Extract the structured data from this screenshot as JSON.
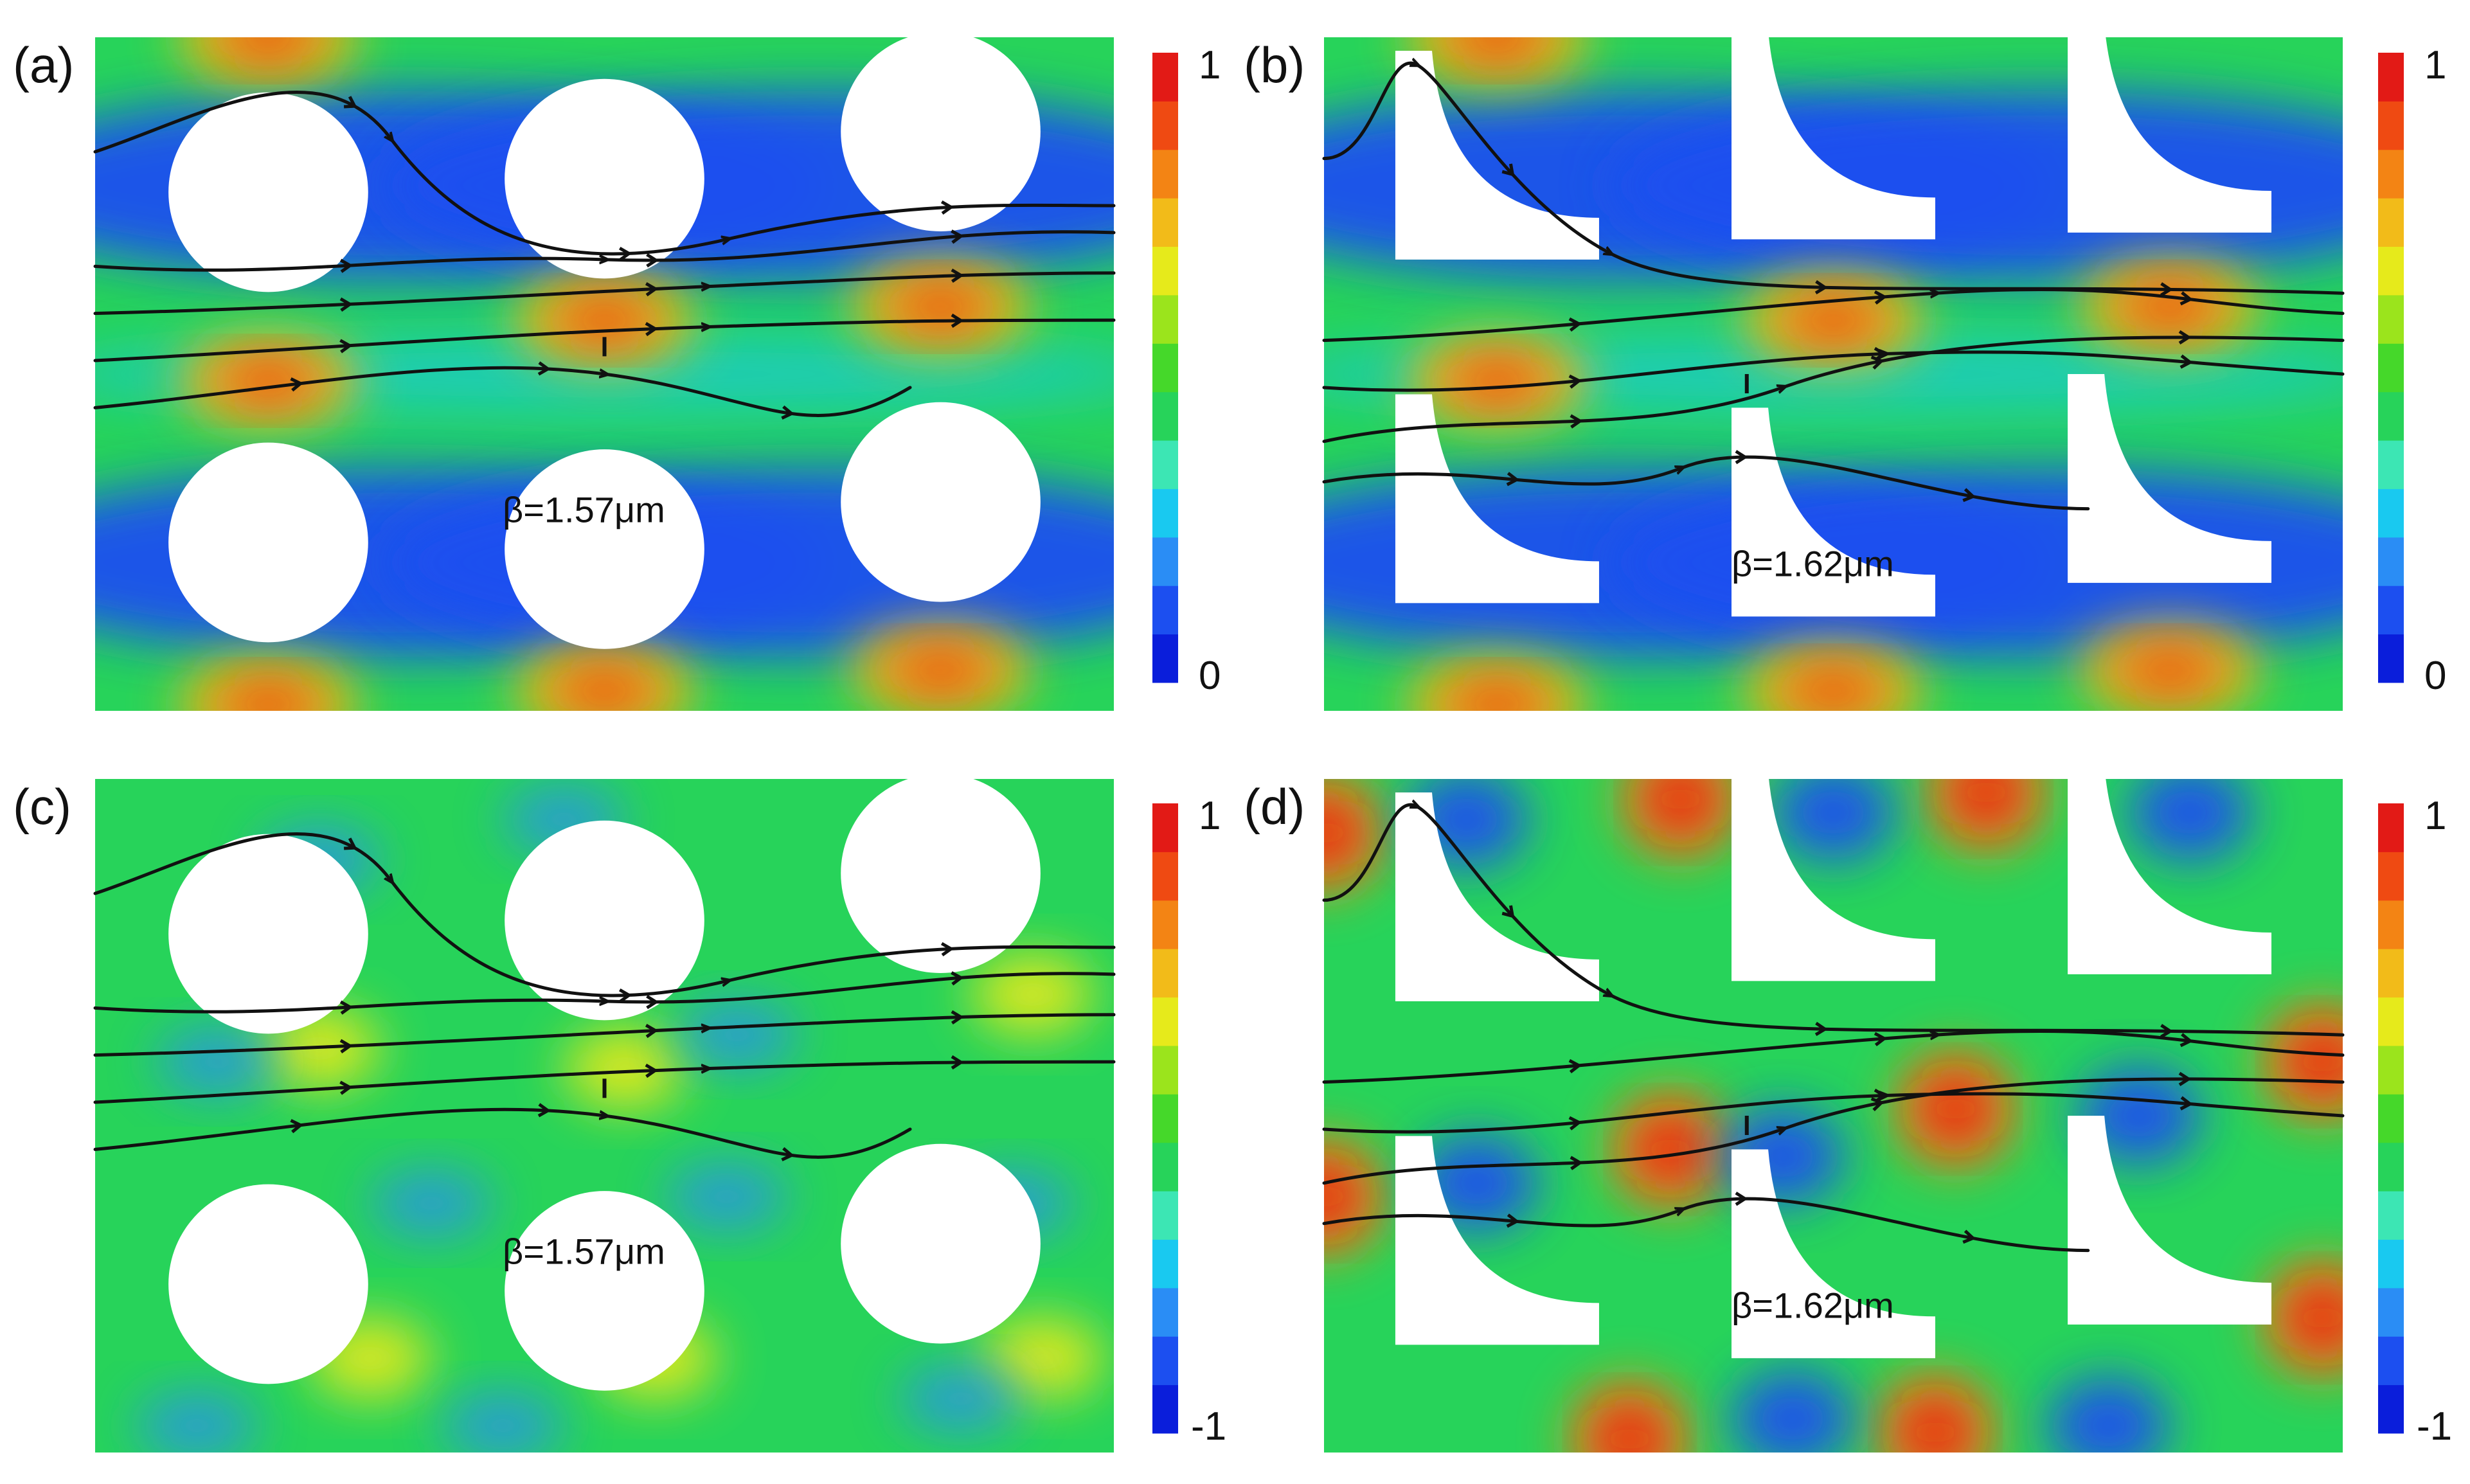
{
  "figure": {
    "panels": [
      {
        "id": "a",
        "label": "(a)",
        "beta": "β=1.57μm",
        "pillar": "circle",
        "colormap": "magnitude",
        "cb_max": "1",
        "cb_min": "0"
      },
      {
        "id": "b",
        "label": "(b)",
        "beta": "β=1.62μm",
        "pillar": "quarter",
        "colormap": "magnitude",
        "cb_max": "1",
        "cb_min": "0"
      },
      {
        "id": "c",
        "label": "(c)",
        "beta": "β=1.57μm",
        "pillar": "circle",
        "colormap": "signed",
        "cb_max": "1",
        "cb_min": "-1"
      },
      {
        "id": "d",
        "label": "(d)",
        "beta": "β=1.62μm",
        "pillar": "quarter",
        "colormap": "signed",
        "cb_max": "1",
        "cb_min": "-1"
      }
    ],
    "colors": {
      "jet_scale": [
        "#0a1edb",
        "#1c4ff0",
        "#2a8df5",
        "#19c9f0",
        "#3ce6b4",
        "#27d35a",
        "#45d82a",
        "#9be41c",
        "#e6ea1b",
        "#f2bb19",
        "#f38414",
        "#ef4a12",
        "#e21a16"
      ],
      "field_low": "#1f4ff0",
      "field_mid": "#27d35a",
      "field_high": "#e21a16",
      "pillar_fill": "#ffffff",
      "streamline": "#111111"
    }
  }
}
